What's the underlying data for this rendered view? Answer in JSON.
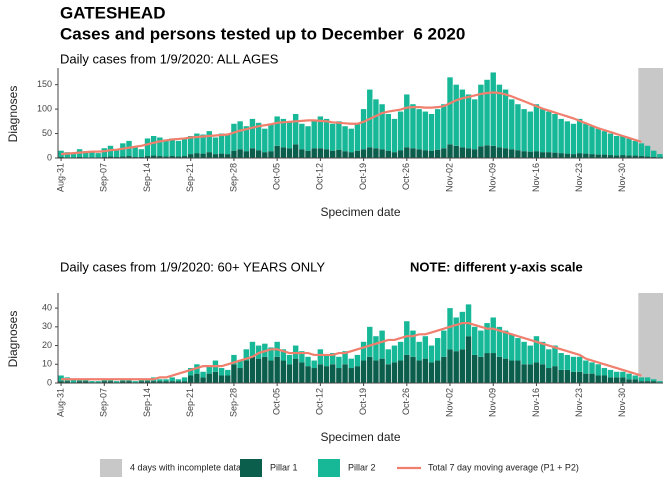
{
  "header": {
    "title": "GATESHEAD",
    "subtitle": "Cases and persons tested up to December  6 2020"
  },
  "legend": [
    {
      "name": "4 days with incomplete data",
      "color": "#c8c8c8"
    },
    {
      "name": "Pillar 1",
      "color": "#0b5e4c"
    },
    {
      "name": "Pillar 2",
      "color": "#17b898"
    },
    {
      "name": "Total 7 day moving average (P1 + P2)",
      "color": "#f07f6e"
    }
  ],
  "chart_data": [
    {
      "type": "bar",
      "subtitle": "Daily cases from 1/9/2020: ALL AGES",
      "xlabel": "Specimen date",
      "ylabel": "Diagnoses",
      "ylim": [
        0,
        180
      ],
      "yticks": [
        0,
        50,
        100,
        150
      ],
      "categories": [
        "Aug-31",
        null,
        null,
        null,
        null,
        null,
        null,
        "Sep-07",
        null,
        null,
        null,
        null,
        null,
        null,
        "Sep-14",
        null,
        null,
        null,
        null,
        null,
        null,
        "Sep-21",
        null,
        null,
        null,
        null,
        null,
        null,
        "Sep-28",
        null,
        null,
        null,
        null,
        null,
        null,
        "Oct-05",
        null,
        null,
        null,
        null,
        null,
        null,
        "Oct-12",
        null,
        null,
        null,
        null,
        null,
        null,
        "Oct-19",
        null,
        null,
        null,
        null,
        null,
        null,
        "Oct-26",
        null,
        null,
        null,
        null,
        null,
        null,
        "Nov-02",
        null,
        null,
        null,
        null,
        null,
        null,
        "Nov-09",
        null,
        null,
        null,
        null,
        null,
        null,
        "Nov-16",
        null,
        null,
        null,
        null,
        null,
        null,
        "Nov-23",
        null,
        null,
        null,
        null,
        null,
        null,
        "Nov-30",
        null,
        null,
        null,
        null,
        null,
        null
      ],
      "series": [
        {
          "values": [
            2,
            1,
            1,
            2,
            1,
            1,
            1,
            2,
            3,
            2,
            3,
            4,
            2,
            2,
            4,
            5,
            4,
            3,
            4,
            3,
            4,
            8,
            10,
            9,
            12,
            8,
            9,
            8,
            15,
            18,
            14,
            20,
            16,
            12,
            14,
            25,
            22,
            20,
            28,
            18,
            15,
            20,
            20,
            18,
            15,
            17,
            14,
            12,
            15,
            18,
            22,
            20,
            18,
            15,
            12,
            16,
            22,
            20,
            18,
            16,
            15,
            17,
            20,
            28,
            25,
            22,
            20,
            18,
            24,
            26,
            25,
            22,
            20,
            18,
            16,
            14,
            13,
            14,
            12,
            12,
            11,
            10,
            9,
            8,
            10,
            9,
            8,
            7,
            7,
            6,
            5,
            6,
            5,
            5,
            4,
            3,
            2,
            1
          ]
        },
        {
          "values": [
            13,
            11,
            9,
            16,
            13,
            11,
            9,
            18,
            22,
            16,
            27,
            31,
            20,
            16,
            36,
            40,
            38,
            35,
            36,
            32,
            36,
            37,
            40,
            39,
            43,
            34,
            41,
            40,
            55,
            57,
            51,
            60,
            56,
            48,
            56,
            60,
            58,
            55,
            62,
            52,
            50,
            55,
            65,
            62,
            55,
            58,
            51,
            48,
            55,
            82,
            118,
            100,
            92,
            75,
            68,
            79,
            108,
            90,
            82,
            79,
            75,
            83,
            90,
            137,
            125,
            118,
            110,
            102,
            126,
            134,
            150,
            128,
            120,
            102,
            94,
            86,
            82,
            96,
            88,
            83,
            79,
            70,
            66,
            62,
            70,
            61,
            57,
            53,
            48,
            44,
            40,
            39,
            35,
            30,
            26,
            22,
            13,
            7
          ]
        },
        {
          "type": "line",
          "values": [
            8,
            9,
            10,
            11,
            12,
            13,
            13,
            14,
            16,
            17,
            19,
            21,
            23,
            25,
            28,
            31,
            34,
            36,
            38,
            39,
            40,
            42,
            43,
            44,
            45,
            46,
            47,
            48,
            52,
            56,
            59,
            62,
            65,
            67,
            69,
            72,
            73,
            74,
            75,
            76,
            77,
            77,
            76,
            75,
            73,
            72,
            71,
            70,
            70,
            74,
            80,
            86,
            92,
            95,
            97,
            99,
            103,
            104,
            104,
            103,
            103,
            104,
            106,
            112,
            118,
            122,
            125,
            128,
            131,
            133,
            134,
            133,
            130,
            126,
            121,
            116,
            111,
            106,
            101,
            97,
            93,
            89,
            85,
            81,
            76,
            71,
            66,
            61,
            57,
            53,
            49,
            45,
            41,
            37,
            33,
            null,
            null,
            null
          ]
        }
      ]
    },
    {
      "type": "bar",
      "subtitle": "Daily cases from 1/9/2020: 60+ YEARS ONLY",
      "note": "NOTE: different y-axis scale",
      "xlabel": "Specimen date",
      "ylabel": "Diagnoses",
      "ylim": [
        0,
        47
      ],
      "yticks": [
        0,
        10,
        20,
        30,
        40
      ],
      "categories": [
        "Aug-31",
        null,
        null,
        null,
        null,
        null,
        null,
        "Sep-07",
        null,
        null,
        null,
        null,
        null,
        null,
        "Sep-14",
        null,
        null,
        null,
        null,
        null,
        null,
        "Sep-21",
        null,
        null,
        null,
        null,
        null,
        null,
        "Sep-28",
        null,
        null,
        null,
        null,
        null,
        null,
        "Oct-05",
        null,
        null,
        null,
        null,
        null,
        null,
        "Oct-12",
        null,
        null,
        null,
        null,
        null,
        null,
        "Oct-19",
        null,
        null,
        null,
        null,
        null,
        null,
        "Oct-26",
        null,
        null,
        null,
        null,
        null,
        null,
        "Nov-02",
        null,
        null,
        null,
        null,
        null,
        null,
        "Nov-09",
        null,
        null,
        null,
        null,
        null,
        null,
        "Nov-16",
        null,
        null,
        null,
        null,
        null,
        null,
        "Nov-23",
        null,
        null,
        null,
        null,
        null,
        null,
        "Nov-30",
        null,
        null,
        null,
        null,
        null,
        null
      ],
      "series": [
        {
          "values": [
            1,
            1,
            0,
            1,
            1,
            0,
            0,
            1,
            1,
            0,
            1,
            1,
            0,
            1,
            1,
            1,
            1,
            1,
            1,
            1,
            1,
            4,
            5,
            3,
            5,
            6,
            4,
            4,
            10,
            8,
            12,
            14,
            13,
            14,
            12,
            14,
            12,
            10,
            13,
            11,
            9,
            8,
            10,
            9,
            10,
            8,
            10,
            8,
            9,
            12,
            14,
            12,
            13,
            10,
            11,
            12,
            15,
            14,
            12,
            13,
            11,
            12,
            14,
            18,
            17,
            18,
            25,
            15,
            14,
            16,
            16,
            14,
            13,
            12,
            12,
            10,
            10,
            11,
            10,
            8,
            9,
            7,
            7,
            6,
            6,
            5,
            5,
            4,
            4,
            3,
            3,
            3,
            2,
            2,
            1,
            1,
            1,
            0
          ]
        },
        {
          "values": [
            3,
            2,
            2,
            1,
            1,
            1,
            1,
            1,
            1,
            1,
            1,
            1,
            1,
            1,
            1,
            2,
            1,
            1,
            2,
            1,
            2,
            4,
            5,
            3,
            4,
            6,
            4,
            3,
            5,
            4,
            6,
            8,
            7,
            7,
            7,
            8,
            6,
            5,
            7,
            6,
            5,
            4,
            8,
            6,
            6,
            6,
            7,
            5,
            6,
            10,
            16,
            13,
            15,
            8,
            9,
            10,
            18,
            14,
            10,
            12,
            9,
            12,
            14,
            22,
            18,
            20,
            17,
            15,
            14,
            16,
            19,
            16,
            15,
            14,
            12,
            12,
            10,
            14,
            12,
            10,
            11,
            9,
            8,
            8,
            8,
            7,
            6,
            6,
            4,
            4,
            3,
            3,
            3,
            2,
            2,
            2,
            1,
            1
          ]
        },
        {
          "type": "line",
          "values": [
            2,
            2,
            2,
            2,
            2,
            2,
            2,
            2,
            2,
            2,
            2,
            2,
            2,
            2,
            2,
            2,
            3,
            3,
            4,
            5,
            6,
            7,
            8,
            9,
            9,
            9,
            9,
            10,
            11,
            12,
            13,
            14,
            16,
            17,
            18,
            18,
            17,
            16,
            16,
            16,
            16,
            15,
            15,
            15,
            15,
            16,
            16,
            17,
            18,
            19,
            20,
            21,
            22,
            23,
            23,
            24,
            25,
            25,
            26,
            26,
            27,
            28,
            29,
            30,
            31,
            32,
            32,
            31,
            30,
            29,
            29,
            28,
            27,
            26,
            25,
            24,
            23,
            22,
            21,
            20,
            19,
            18,
            17,
            16,
            15,
            13,
            12,
            11,
            10,
            9,
            8,
            7,
            6,
            5,
            4,
            null,
            null,
            null
          ]
        }
      ]
    }
  ]
}
